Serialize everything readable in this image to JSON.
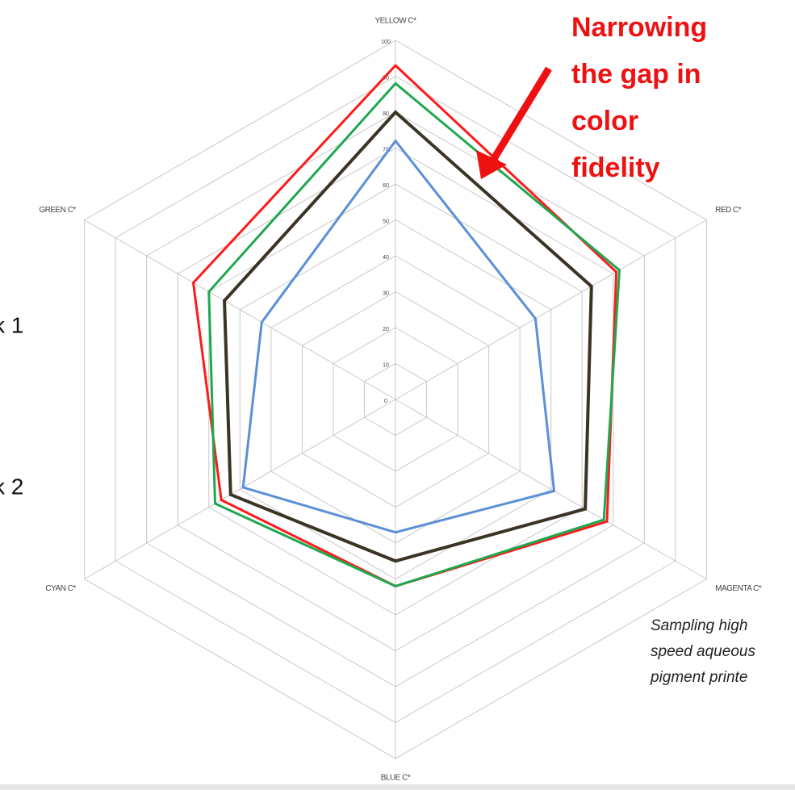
{
  "chart_data": {
    "type": "radar",
    "categories": [
      "YELLOW C*",
      "RED C*",
      "MAGENTA C*",
      "BLUE C*",
      "CYAN  C*",
      "GREEN C*"
    ],
    "series": [
      {
        "color": "#ff1a1a",
        "values": [
          93,
          71,
          68,
          52,
          56,
          65
        ]
      },
      {
        "color": "#1fa84f",
        "values": [
          88,
          72,
          67,
          52,
          58,
          60
        ]
      },
      {
        "color": "#3b3426",
        "values": [
          80,
          63,
          61,
          45,
          53,
          55
        ]
      },
      {
        "color": "#5b8fd6",
        "values": [
          72,
          45,
          51,
          37,
          49,
          43
        ]
      }
    ],
    "ylim": [
      0,
      100
    ],
    "yticks": [
      0,
      10,
      20,
      30,
      40,
      50,
      60,
      70,
      80,
      90,
      100
    ],
    "grid": true,
    "annotation": {
      "lines": [
        "Narrowing",
        "the gap in",
        "color",
        "fidelity"
      ],
      "color": "#ee1111"
    },
    "caption": [
      "Sampling high",
      "speed aqueous",
      "pigment printe"
    ],
    "legend_fragments": [
      "k 1",
      "k 2"
    ]
  }
}
